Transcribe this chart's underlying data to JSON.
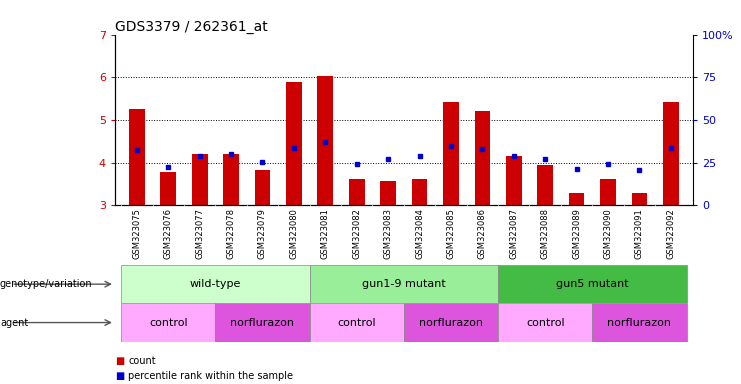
{
  "title": "GDS3379 / 262361_at",
  "samples": [
    "GSM323075",
    "GSM323076",
    "GSM323077",
    "GSM323078",
    "GSM323079",
    "GSM323080",
    "GSM323081",
    "GSM323082",
    "GSM323083",
    "GSM323084",
    "GSM323085",
    "GSM323086",
    "GSM323087",
    "GSM323088",
    "GSM323089",
    "GSM323090",
    "GSM323091",
    "GSM323092"
  ],
  "red_values": [
    5.25,
    3.78,
    4.2,
    4.2,
    3.83,
    5.88,
    6.02,
    3.62,
    3.58,
    3.62,
    5.42,
    5.2,
    4.15,
    3.95,
    3.3,
    3.62,
    3.3,
    5.42
  ],
  "blue_values": [
    4.3,
    3.9,
    4.15,
    4.2,
    4.02,
    4.35,
    4.48,
    3.97,
    4.08,
    4.15,
    4.38,
    4.32,
    4.15,
    4.08,
    3.85,
    3.98,
    3.83,
    4.35
  ],
  "ymin": 3.0,
  "ymax": 7.0,
  "yticks": [
    3,
    4,
    5,
    6,
    7
  ],
  "right_yticks": [
    0,
    25,
    50,
    75,
    100
  ],
  "red_color": "#cc0000",
  "blue_color": "#0000cc",
  "bar_width": 0.5,
  "genotype_groups": [
    {
      "label": "wild-type",
      "start": 0,
      "end": 5,
      "color": "#ccffcc"
    },
    {
      "label": "gun1-9 mutant",
      "start": 6,
      "end": 11,
      "color": "#99ee99"
    },
    {
      "label": "gun5 mutant",
      "start": 12,
      "end": 17,
      "color": "#44bb44"
    }
  ],
  "agent_groups": [
    {
      "label": "control",
      "start": 0,
      "end": 2,
      "color": "#ffaaff"
    },
    {
      "label": "norflurazon",
      "start": 3,
      "end": 5,
      "color": "#dd55dd"
    },
    {
      "label": "control",
      "start": 6,
      "end": 8,
      "color": "#ffaaff"
    },
    {
      "label": "norflurazon",
      "start": 9,
      "end": 11,
      "color": "#dd55dd"
    },
    {
      "label": "control",
      "start": 12,
      "end": 14,
      "color": "#ffaaff"
    },
    {
      "label": "norflurazon",
      "start": 15,
      "end": 17,
      "color": "#dd55dd"
    }
  ],
  "title_fontsize": 10,
  "xtick_label_color": "#333333",
  "xtick_bg_color": "#cccccc"
}
